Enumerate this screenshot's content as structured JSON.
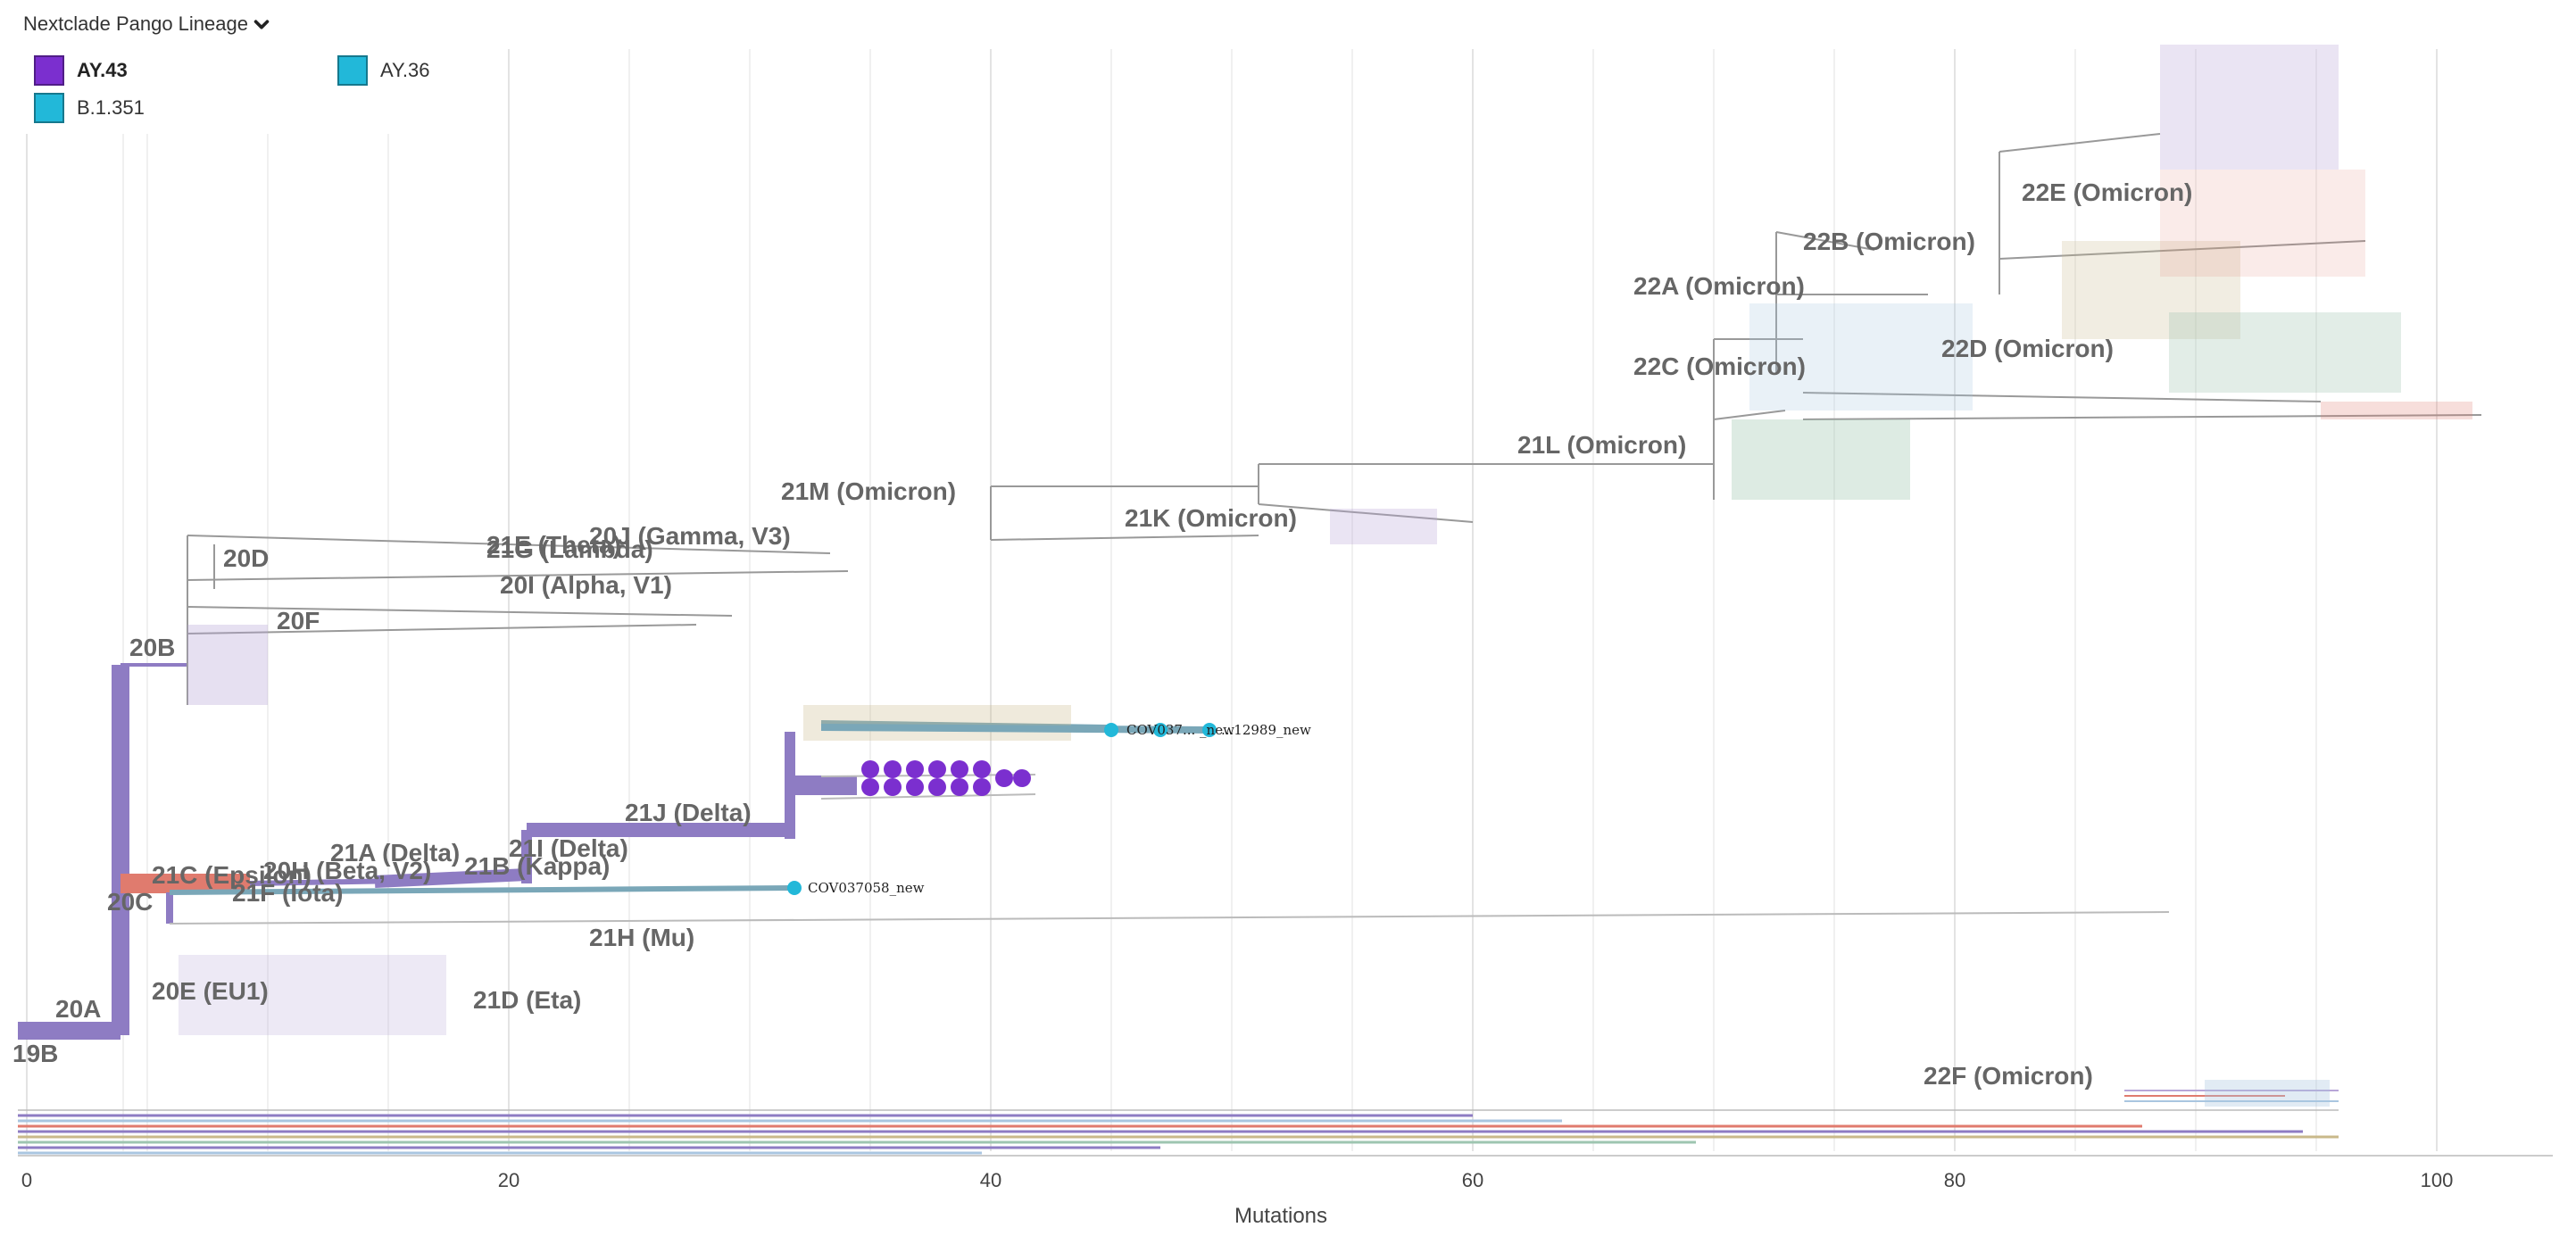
{
  "legend": {
    "title": "Nextclade Pango Lineage",
    "items": [
      {
        "label": "AY.43",
        "color": "#7B2FCF",
        "active": true
      },
      {
        "label": "AY.36",
        "color": "#22B8D9",
        "active": false
      },
      {
        "label": "B.1.351",
        "color": "#22B8D9",
        "active": false
      }
    ]
  },
  "axis": {
    "title": "Mutations",
    "ticks": [
      "0",
      "20",
      "40",
      "60",
      "80",
      "100"
    ]
  },
  "clades": [
    {
      "id": "19B",
      "label": "19B"
    },
    {
      "id": "20A",
      "label": "20A"
    },
    {
      "id": "20B",
      "label": "20B"
    },
    {
      "id": "20C",
      "label": "20C"
    },
    {
      "id": "20D",
      "label": "20D"
    },
    {
      "id": "20F",
      "label": "20F"
    },
    {
      "id": "20E",
      "label": "20E (EU1)"
    },
    {
      "id": "21D",
      "label": "21D (Eta)"
    },
    {
      "id": "21H",
      "label": "21H (Mu)"
    },
    {
      "id": "21F",
      "label": "21F (Iota)"
    },
    {
      "id": "21C",
      "label": "21C (Epsilon)"
    },
    {
      "id": "20H",
      "label": "20H (Beta, V2)"
    },
    {
      "id": "21A",
      "label": "21A (Delta)"
    },
    {
      "id": "21B",
      "label": "21B (Kappa)"
    },
    {
      "id": "21I",
      "label": "21I (Delta)"
    },
    {
      "id": "21J",
      "label": "21J (Delta)"
    },
    {
      "id": "20I",
      "label": "20I (Alpha, V1)"
    },
    {
      "id": "21E",
      "label": "21E (Theta)"
    },
    {
      "id": "21G",
      "label": "21G (Lambda)"
    },
    {
      "id": "20J",
      "label": "20J (Gamma, V3)"
    },
    {
      "id": "21M",
      "label": "21M (Omicron)"
    },
    {
      "id": "21K",
      "label": "21K (Omicron)"
    },
    {
      "id": "21L",
      "label": "21L (Omicron)"
    },
    {
      "id": "22A",
      "label": "22A (Omicron)"
    },
    {
      "id": "22B",
      "label": "22B (Omicron)"
    },
    {
      "id": "22C",
      "label": "22C (Omicron)"
    },
    {
      "id": "22D",
      "label": "22D (Omicron)"
    },
    {
      "id": "22E",
      "label": "22E (Omicron)"
    },
    {
      "id": "22F",
      "label": "22F (Omicron)"
    }
  ],
  "tips": {
    "cov037058": "COV037058_new",
    "cluster_upper": "COV037... _new",
    "cluster_upper_end": "...12989_new"
  },
  "colors": {
    "delta_branch": "#8E7CC3",
    "epsilon_branch": "#E07B6E",
    "tip_cyan": "#22B8D9",
    "tip_purple": "#7B2FCF",
    "grid": "#dddddd"
  }
}
